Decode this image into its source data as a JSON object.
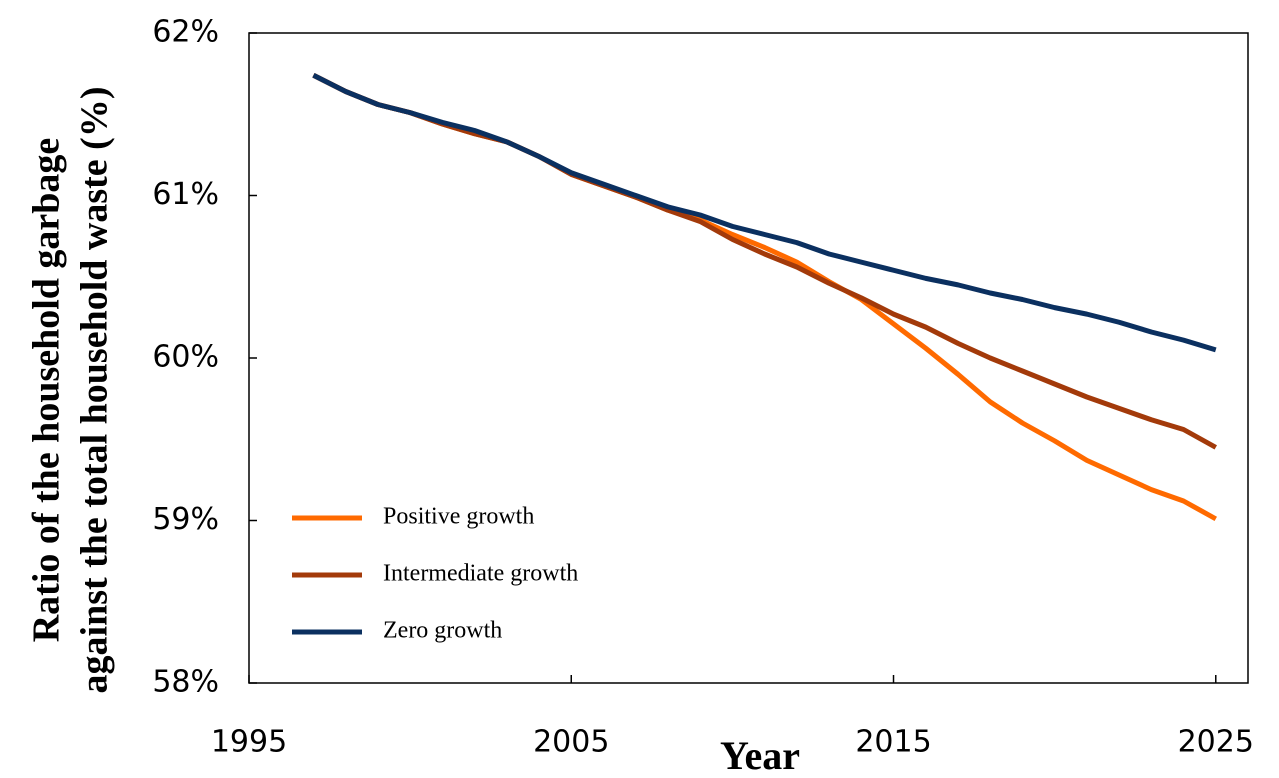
{
  "chart_data": {
    "type": "line",
    "x_label": "Year",
    "y_label": [
      "Ratio of the household garbage",
      "against the total household waste (%)"
    ],
    "x": [
      1997,
      1998,
      1999,
      2000,
      2001,
      2002,
      2003,
      2004,
      2005,
      2006,
      2007,
      2008,
      2009,
      2010,
      2011,
      2012,
      2013,
      2014,
      2015,
      2016,
      2017,
      2018,
      2019,
      2020,
      2021,
      2022,
      2023,
      2024,
      2025
    ],
    "series": [
      {
        "name": "Positive growth",
        "color": "#ff6a00",
        "values": [
          61.74,
          61.64,
          61.56,
          61.51,
          61.44,
          61.38,
          61.33,
          61.24,
          61.13,
          61.06,
          60.99,
          60.91,
          60.85,
          60.76,
          60.68,
          60.59,
          60.47,
          60.36,
          60.21,
          60.06,
          59.9,
          59.73,
          59.6,
          59.49,
          59.37,
          59.28,
          59.19,
          59.12,
          59.01
        ]
      },
      {
        "name": "Intermediate growth",
        "color": "#a33a0a",
        "values": [
          61.74,
          61.64,
          61.56,
          61.51,
          61.44,
          61.38,
          61.33,
          61.24,
          61.13,
          61.06,
          60.99,
          60.91,
          60.84,
          60.73,
          60.64,
          60.56,
          60.46,
          60.37,
          60.27,
          60.19,
          60.09,
          60.0,
          59.92,
          59.84,
          59.76,
          59.69,
          59.62,
          59.56,
          59.45
        ]
      },
      {
        "name": "Zero growth",
        "color": "#0b3060",
        "values": [
          61.74,
          61.64,
          61.56,
          61.51,
          61.45,
          61.4,
          61.33,
          61.24,
          61.14,
          61.07,
          61.0,
          60.93,
          60.88,
          60.81,
          60.76,
          60.71,
          60.64,
          60.59,
          60.54,
          60.49,
          60.45,
          60.4,
          60.36,
          60.31,
          60.27,
          60.22,
          60.16,
          60.11,
          60.05
        ]
      }
    ],
    "xlim": [
      1995,
      2026
    ],
    "xticks": [
      1995,
      2005,
      2015,
      2025
    ],
    "ylim": [
      58,
      62
    ],
    "yticks": [
      {
        "value": 58,
        "label": "58%"
      },
      {
        "value": 59,
        "label": "59%"
      },
      {
        "value": 60,
        "label": "60%"
      },
      {
        "value": 61,
        "label": "61%"
      },
      {
        "value": 62,
        "label": "62%"
      }
    ],
    "grid": false,
    "legend": "lower left"
  }
}
